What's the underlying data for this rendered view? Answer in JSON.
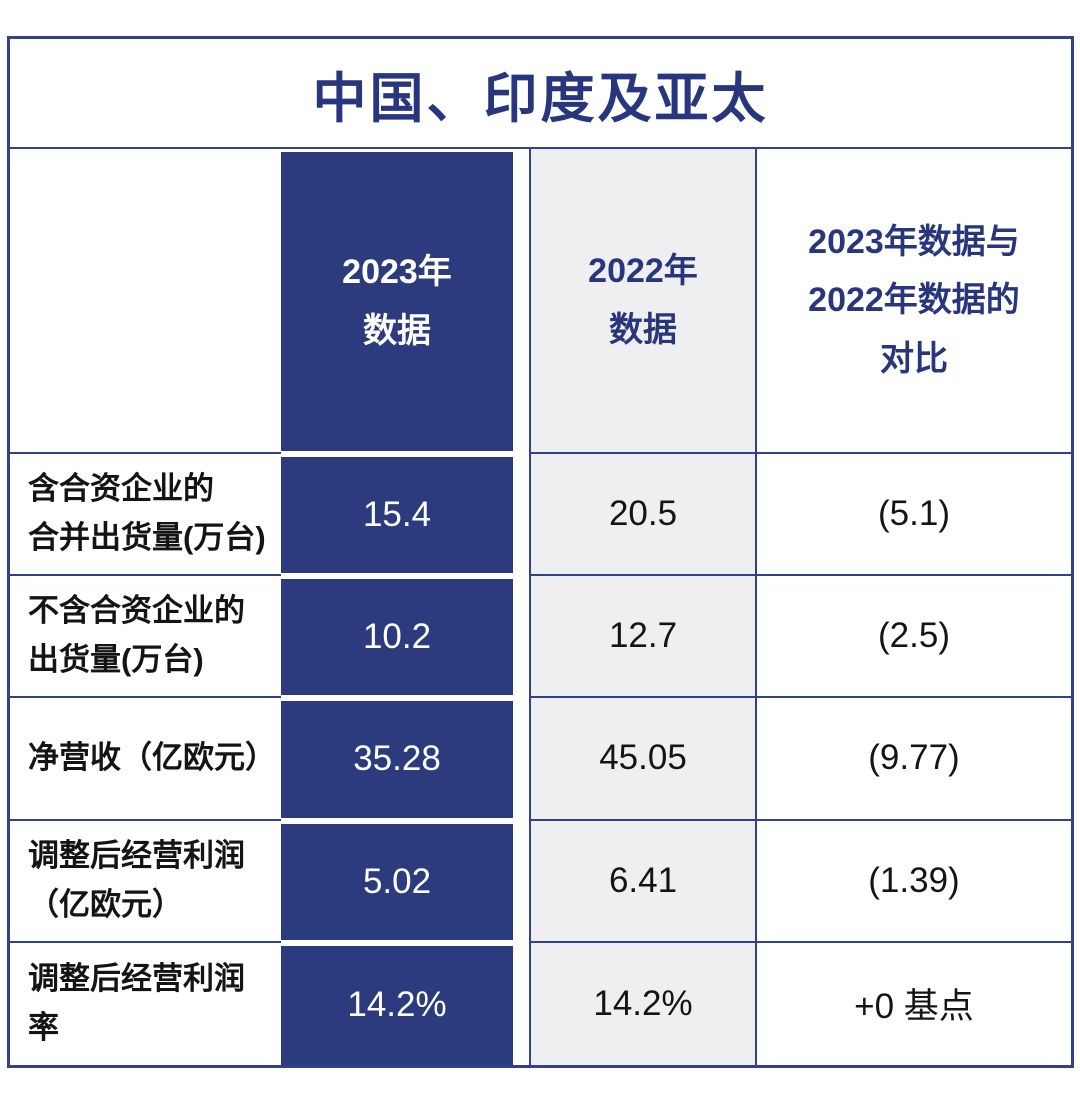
{
  "title": "中国、印度及亚太",
  "colors": {
    "navy_fill": "#2B3B7E",
    "border_line": "#32418D",
    "header_text": "#27367D",
    "gray_column": "#EFEFF1",
    "body_text": "#141414"
  },
  "header": {
    "col_2023": "2023年\n数据",
    "col_2022": "2022年\n数据",
    "col_compare": "2023年数据与\n2022年数据的\n对比"
  },
  "rows": [
    {
      "label": "含合资企业的\n合并出货量(万台)",
      "y2023": "15.4",
      "y2022": "20.5",
      "delta": "(5.1)"
    },
    {
      "label": "不含合资企业的\n出货量(万台)",
      "y2023": "10.2",
      "y2022": "12.7",
      "delta": "(2.5)"
    },
    {
      "label": "净营收（亿欧元）",
      "y2023": "35.28",
      "y2022": "45.05",
      "delta": "(9.77)"
    },
    {
      "label": "调整后经营利润\n（亿欧元）",
      "y2023": "5.02",
      "y2022": "6.41",
      "delta": "(1.39)"
    },
    {
      "label": "调整后经营利润率",
      "y2023": "14.2%",
      "y2022": "14.2%",
      "delta": "+0 基点"
    }
  ],
  "chart_data": {
    "type": "table",
    "title": "中国、印度及亚太",
    "columns": [
      "",
      "2023年数据",
      "2022年数据",
      "2023年数据与2022年数据的对比"
    ],
    "rows": [
      [
        "含合资企业的合并出货量(万台)",
        "15.4",
        "20.5",
        "(5.1)"
      ],
      [
        "不含合资企业的出货量(万台)",
        "10.2",
        "12.7",
        "(2.5)"
      ],
      [
        "净营收（亿欧元）",
        "35.28",
        "45.05",
        "(9.77)"
      ],
      [
        "调整后经营利润（亿欧元）",
        "5.02",
        "6.41",
        "(1.39)"
      ],
      [
        "调整后经营利润率",
        "14.2%",
        "14.2%",
        "+0 基点"
      ]
    ]
  }
}
